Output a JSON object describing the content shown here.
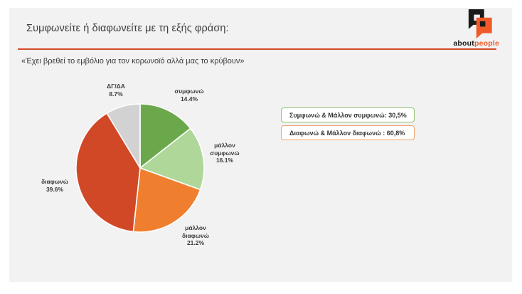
{
  "header": {
    "title": "Συμφωνείτε ή διαφωνείτε με τη εξής φράση:",
    "question": "«Έχει βρεθεί το εμβόλιο για τον κορωνοϊό αλλά μας το κρύβουν»"
  },
  "logo": {
    "text_black": "about",
    "text_orange": "people"
  },
  "colors": {
    "accent_rule": "#d6492a",
    "slide_background": "#f2f2f2",
    "logo_orange": "#f05a28"
  },
  "chart_data": {
    "type": "pie",
    "title": "«Έχει βρεθεί το εμβόλιο για τον κορωνοϊό αλλά μας το κρύβουν»",
    "categories": [
      "συμφωνώ",
      "μάλλον συμφωνώ",
      "μάλλον διαφωνώ",
      "διαφωνώ",
      "ΔΓ/ΔΑ"
    ],
    "values": [
      14.4,
      16.1,
      21.2,
      39.6,
      8.7
    ],
    "labels": [
      "14.4%",
      "16.1%",
      "21.2%",
      "39.6%",
      "8.7%"
    ],
    "colors": [
      "#6aa84b",
      "#afd79a",
      "#ef7f2e",
      "#d14827",
      "#d2d2d2"
    ],
    "start_angle_deg": 0,
    "direction": "clockwise",
    "legend_position": "labels-outside"
  },
  "aggregates": [
    {
      "label": "Συμφωνώ & Μάλλον συμφωνώ: 30,5%",
      "value": "30,5%",
      "border_color": "#90c06e"
    },
    {
      "label": "Διαφωνώ & Μάλλον διαφωνώ : 60,8%",
      "value": "60,8%",
      "border_color": "#f0a368"
    }
  ]
}
